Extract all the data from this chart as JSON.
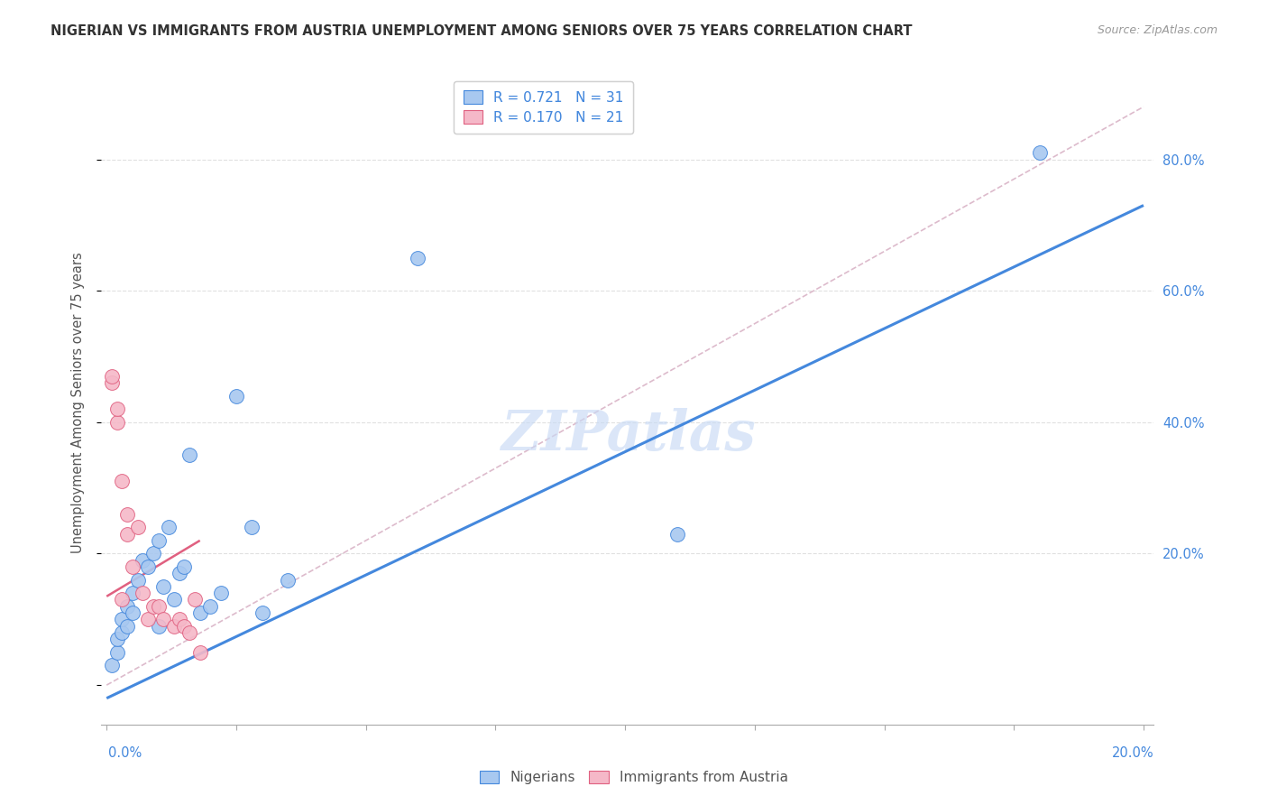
{
  "title": "NIGERIAN VS IMMIGRANTS FROM AUSTRIA UNEMPLOYMENT AMONG SENIORS OVER 75 YEARS CORRELATION CHART",
  "source": "Source: ZipAtlas.com",
  "ylabel": "Unemployment Among Seniors over 75 years",
  "legend_r1": "0.721",
  "legend_n1": "31",
  "legend_r2": "0.170",
  "legend_n2": "21",
  "watermark": "ZIPatlas",
  "blue_scatter_color": "#a8c8f0",
  "pink_scatter_color": "#f5b8c8",
  "blue_line_color": "#4488dd",
  "pink_line_color": "#e06080",
  "ref_line_color": "#ddbbcc",
  "grid_color": "#e0e0e0",
  "ytick_color": "#4488dd",
  "xtick_color": "#4488dd",
  "nigerian_x": [
    0.001,
    0.002,
    0.002,
    0.003,
    0.003,
    0.004,
    0.004,
    0.005,
    0.005,
    0.006,
    0.007,
    0.008,
    0.009,
    0.01,
    0.01,
    0.011,
    0.012,
    0.013,
    0.014,
    0.015,
    0.016,
    0.018,
    0.02,
    0.022,
    0.025,
    0.028,
    0.03,
    0.035,
    0.06,
    0.11,
    0.18
  ],
  "nigerian_y": [
    0.03,
    0.05,
    0.07,
    0.08,
    0.1,
    0.09,
    0.12,
    0.11,
    0.14,
    0.16,
    0.19,
    0.18,
    0.2,
    0.22,
    0.09,
    0.15,
    0.24,
    0.13,
    0.17,
    0.18,
    0.35,
    0.11,
    0.12,
    0.14,
    0.44,
    0.24,
    0.11,
    0.16,
    0.65,
    0.23,
    0.81
  ],
  "austria_x": [
    0.001,
    0.001,
    0.002,
    0.002,
    0.003,
    0.003,
    0.004,
    0.004,
    0.005,
    0.006,
    0.007,
    0.008,
    0.009,
    0.01,
    0.011,
    0.013,
    0.014,
    0.015,
    0.016,
    0.017,
    0.018
  ],
  "austria_y": [
    0.46,
    0.47,
    0.4,
    0.42,
    0.31,
    0.13,
    0.26,
    0.23,
    0.18,
    0.24,
    0.14,
    0.1,
    0.12,
    0.12,
    0.1,
    0.09,
    0.1,
    0.09,
    0.08,
    0.13,
    0.05
  ],
  "blue_line_x0": 0.0,
  "blue_line_y0": -0.02,
  "blue_line_x1": 0.2,
  "blue_line_y1": 0.73,
  "pink_line_x0": 0.0,
  "pink_line_y0": 0.135,
  "pink_line_x1": 0.018,
  "pink_line_y1": 0.22,
  "ref_line_x0": 0.0,
  "ref_line_y0": 0.0,
  "ref_line_x1": 0.2,
  "ref_line_y1": 0.88,
  "xmin": -0.001,
  "xmax": 0.202,
  "ymin": -0.06,
  "ymax": 0.92,
  "yticks": [
    0.0,
    0.2,
    0.4,
    0.6,
    0.8
  ],
  "ytick_labels": [
    "",
    "20.0%",
    "40.0%",
    "60.0%",
    "80.0%"
  ]
}
